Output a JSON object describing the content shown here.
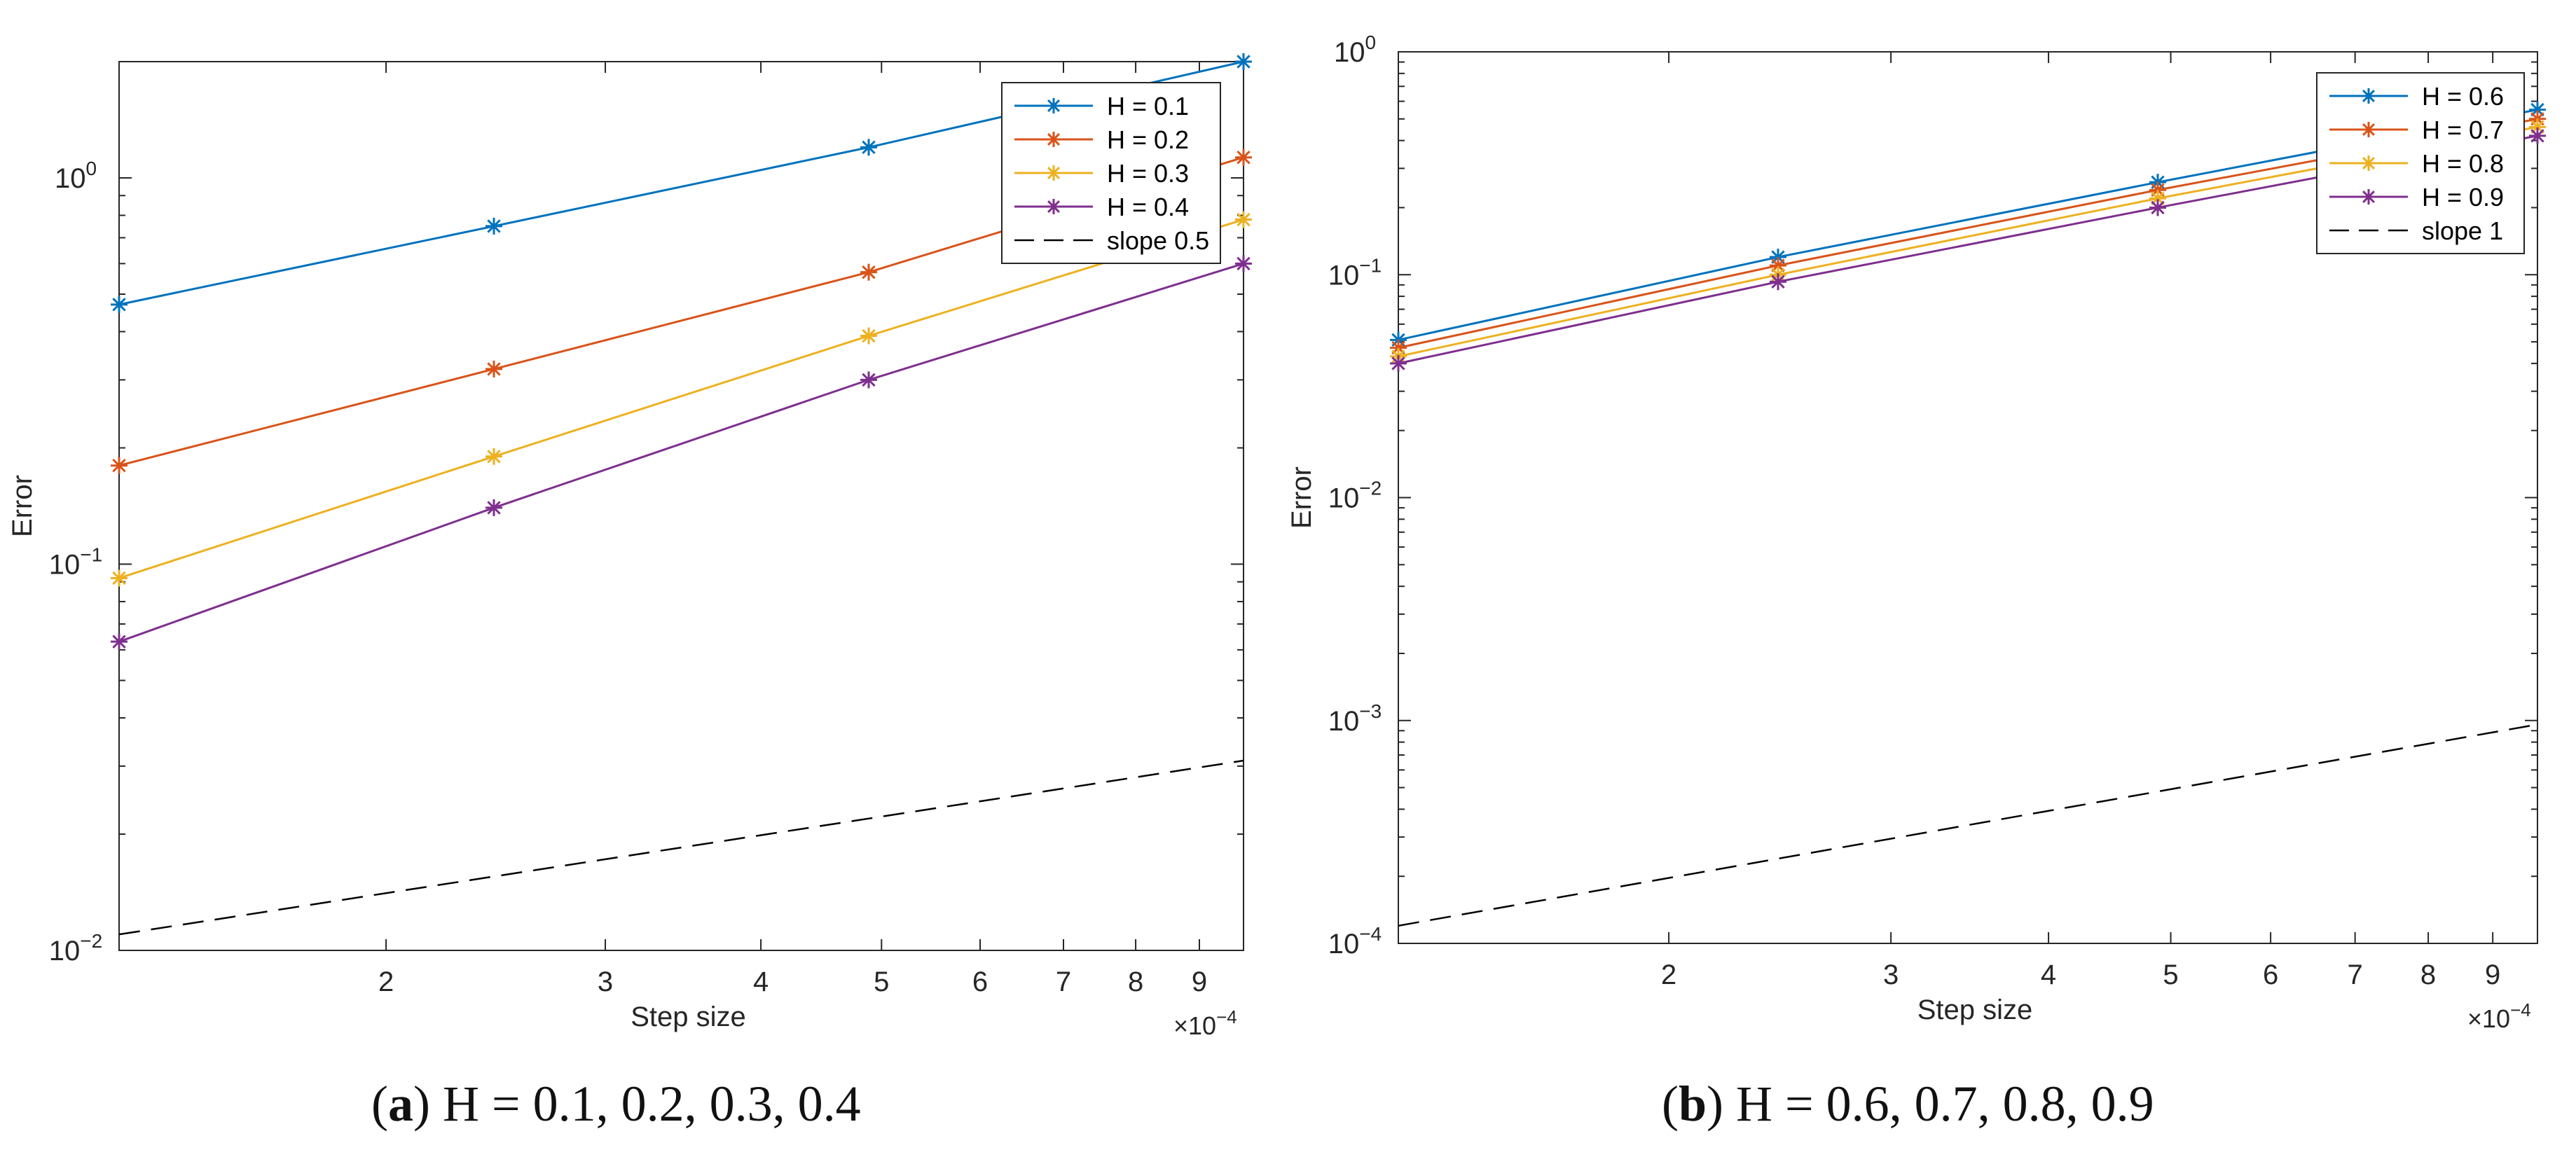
{
  "chart_data": [
    {
      "type": "line",
      "id": "a",
      "caption": {
        "letter": "a",
        "text": "H = 0.1, 0.2, 0.3, 0.4"
      },
      "xlabel": "Step size",
      "ylabel": "Error",
      "xscale": "log",
      "yscale": "log",
      "xlim": [
        0.00012207,
        0.00097656
      ],
      "ylim": [
        0.01,
        2.0
      ],
      "x_multiplier_label": "×10",
      "x_multiplier_exp": "−4",
      "x_ticks": [
        {
          "value": 0.0002,
          "label": "2"
        },
        {
          "value": 0.0003,
          "label": "3"
        },
        {
          "value": 0.0004,
          "label": "4"
        },
        {
          "value": 0.0005,
          "label": "5"
        },
        {
          "value": 0.0006,
          "label": "6"
        },
        {
          "value": 0.0007,
          "label": "7"
        },
        {
          "value": 0.0008,
          "label": "8"
        },
        {
          "value": 0.0009,
          "label": "9"
        }
      ],
      "y_ticks": [
        {
          "value": 0.01,
          "base": "10",
          "exp": "−2"
        },
        {
          "value": 0.1,
          "base": "10",
          "exp": "−1"
        },
        {
          "value": 1,
          "base": "10",
          "exp": "0"
        }
      ],
      "legend_position": "top-right",
      "series": [
        {
          "name": "H = 0.1",
          "color": "#0072BD",
          "style": "solid-star",
          "x": [
            0.00012207,
            0.00024414,
            0.00048828,
            0.00097656
          ],
          "y": [
            0.47,
            0.75,
            1.2,
            2.0
          ]
        },
        {
          "name": "H = 0.2",
          "color": "#D95319",
          "style": "solid-star",
          "x": [
            0.00012207,
            0.00024414,
            0.00048828,
            0.00097656
          ],
          "y": [
            0.18,
            0.32,
            0.57,
            1.13
          ]
        },
        {
          "name": "H = 0.3",
          "color": "#EDB120",
          "style": "solid-star",
          "x": [
            0.00012207,
            0.00024414,
            0.00048828,
            0.00097656
          ],
          "y": [
            0.092,
            0.19,
            0.39,
            0.78
          ]
        },
        {
          "name": "H = 0.4",
          "color": "#7E2F8E",
          "style": "solid-star",
          "x": [
            0.00012207,
            0.00024414,
            0.00048828,
            0.00097656
          ],
          "y": [
            0.063,
            0.14,
            0.3,
            0.6
          ]
        },
        {
          "name": "slope 0.5",
          "color": "#000000",
          "style": "dashed",
          "x": [
            0.00012207,
            0.00097656
          ],
          "y": [
            0.011,
            0.031
          ]
        }
      ]
    },
    {
      "type": "line",
      "id": "b",
      "caption": {
        "letter": "b",
        "text": "H = 0.6, 0.7, 0.8, 0.9"
      },
      "xlabel": "Step size",
      "ylabel": "Error",
      "xscale": "log",
      "yscale": "log",
      "xlim": [
        0.00012207,
        0.00097656
      ],
      "ylim": [
        0.0001,
        1.0
      ],
      "x_multiplier_label": "×10",
      "x_multiplier_exp": "−4",
      "x_ticks": [
        {
          "value": 0.0002,
          "label": "2"
        },
        {
          "value": 0.0003,
          "label": "3"
        },
        {
          "value": 0.0004,
          "label": "4"
        },
        {
          "value": 0.0005,
          "label": "5"
        },
        {
          "value": 0.0006,
          "label": "6"
        },
        {
          "value": 0.0007,
          "label": "7"
        },
        {
          "value": 0.0008,
          "label": "8"
        },
        {
          "value": 0.0009,
          "label": "9"
        }
      ],
      "y_ticks": [
        {
          "value": 0.0001,
          "base": "10",
          "exp": "−4"
        },
        {
          "value": 0.001,
          "base": "10",
          "exp": "−3"
        },
        {
          "value": 0.01,
          "base": "10",
          "exp": "−2"
        },
        {
          "value": 0.1,
          "base": "10",
          "exp": "−1"
        },
        {
          "value": 1,
          "base": "10",
          "exp": "0"
        }
      ],
      "legend_position": "top-right",
      "series": [
        {
          "name": "H = 0.6",
          "color": "#0072BD",
          "style": "solid-star",
          "x": [
            0.00012207,
            0.00024414,
            0.00048828,
            0.00097656
          ],
          "y": [
            0.051,
            0.12,
            0.26,
            0.55
          ]
        },
        {
          "name": "H = 0.7",
          "color": "#D95319",
          "style": "solid-star",
          "x": [
            0.00012207,
            0.00024414,
            0.00048828,
            0.00097656
          ],
          "y": [
            0.047,
            0.11,
            0.24,
            0.5
          ]
        },
        {
          "name": "H = 0.8",
          "color": "#EDB120",
          "style": "solid-star",
          "x": [
            0.00012207,
            0.00024414,
            0.00048828,
            0.00097656
          ],
          "y": [
            0.043,
            0.1,
            0.22,
            0.46
          ]
        },
        {
          "name": "H = 0.9",
          "color": "#7E2F8E",
          "style": "solid-star",
          "x": [
            0.00012207,
            0.00024414,
            0.00048828,
            0.00097656
          ],
          "y": [
            0.04,
            0.093,
            0.2,
            0.42
          ]
        },
        {
          "name": "slope 1",
          "color": "#000000",
          "style": "dashed",
          "x": [
            0.00012207,
            0.00097656
          ],
          "y": [
            0.00012,
            0.00096
          ]
        }
      ]
    }
  ]
}
